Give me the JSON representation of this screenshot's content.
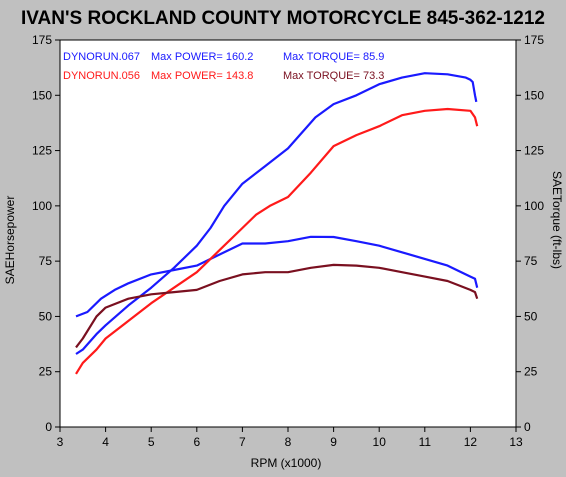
{
  "chart_data": {
    "type": "line",
    "title": "IVAN'S ROCKLAND COUNTY MOTORCYCLE 845-362-1212",
    "xlabel": "RPM (x1000)",
    "ylabel_left": "SAEHorsepower",
    "ylabel_right": "SAETorque (ft-lbs)",
    "xlim": [
      3,
      13
    ],
    "ylim": [
      0,
      175
    ],
    "x_ticks": [
      "3",
      "4",
      "5",
      "6",
      "7",
      "8",
      "9",
      "10",
      "11",
      "12",
      "13"
    ],
    "y_ticks_left": [
      "0",
      "25",
      "50",
      "75",
      "100",
      "125",
      "150",
      "175"
    ],
    "y_ticks_right": [
      "0",
      "25",
      "50",
      "75",
      "100",
      "125",
      "150",
      "175"
    ],
    "grid": false,
    "legend": [
      {
        "run": "DYNORUN.067",
        "power": "Max POWER= 160.2",
        "torque": "Max TORQUE= 85.9",
        "color": "#1a1aff"
      },
      {
        "run": "DYNORUN.056",
        "power": "Max POWER= 143.8",
        "torque": "Max TORQUE= 73.3",
        "color": "#ff1a1a"
      }
    ],
    "series": [
      {
        "color": "#1a1aff",
        "kind": "power",
        "points": [
          [
            3.35,
            33
          ],
          [
            3.5,
            35
          ],
          [
            3.8,
            42
          ],
          [
            4,
            46
          ],
          [
            4.5,
            55
          ],
          [
            5,
            63
          ],
          [
            5.5,
            72
          ],
          [
            6,
            82
          ],
          [
            6.3,
            90
          ],
          [
            6.6,
            100
          ],
          [
            7,
            110
          ],
          [
            7.5,
            118
          ],
          [
            8,
            126
          ],
          [
            8.3,
            133
          ],
          [
            8.6,
            140
          ],
          [
            9,
            146
          ],
          [
            9.5,
            150
          ],
          [
            10,
            155
          ],
          [
            10.5,
            158
          ],
          [
            11,
            160
          ],
          [
            11.5,
            159.5
          ],
          [
            11.9,
            158
          ],
          [
            12,
            157
          ],
          [
            12.05,
            156
          ],
          [
            12.1,
            150
          ],
          [
            12.13,
            147
          ]
        ]
      },
      {
        "color": "#1a1aff",
        "kind": "torque",
        "points": [
          [
            3.35,
            50
          ],
          [
            3.6,
            52
          ],
          [
            3.9,
            58
          ],
          [
            4.2,
            62
          ],
          [
            4.5,
            65
          ],
          [
            5,
            69
          ],
          [
            5.5,
            71
          ],
          [
            6,
            73
          ],
          [
            6.5,
            78
          ],
          [
            7,
            83
          ],
          [
            7.5,
            83
          ],
          [
            8,
            84
          ],
          [
            8.5,
            86
          ],
          [
            9,
            85.9
          ],
          [
            9.5,
            84
          ],
          [
            10,
            82
          ],
          [
            10.5,
            79
          ],
          [
            11,
            76
          ],
          [
            11.5,
            73
          ],
          [
            11.8,
            70
          ],
          [
            12,
            68
          ],
          [
            12.1,
            67
          ],
          [
            12.15,
            63
          ]
        ]
      },
      {
        "color": "#ff1a1a",
        "kind": "power",
        "points": [
          [
            3.35,
            24
          ],
          [
            3.5,
            29
          ],
          [
            3.8,
            35
          ],
          [
            4,
            40
          ],
          [
            4.5,
            48
          ],
          [
            5,
            56
          ],
          [
            5.5,
            63
          ],
          [
            6,
            70
          ],
          [
            6.5,
            80
          ],
          [
            7,
            90
          ],
          [
            7.3,
            96
          ],
          [
            7.6,
            100
          ],
          [
            8,
            104
          ],
          [
            8.5,
            115
          ],
          [
            9,
            127
          ],
          [
            9.5,
            132
          ],
          [
            10,
            136
          ],
          [
            10.5,
            141
          ],
          [
            11,
            143
          ],
          [
            11.5,
            143.8
          ],
          [
            12,
            143
          ],
          [
            12.1,
            140
          ],
          [
            12.15,
            136
          ]
        ]
      },
      {
        "color": "#7a1020",
        "kind": "torque",
        "points": [
          [
            3.35,
            36
          ],
          [
            3.5,
            40
          ],
          [
            3.8,
            50
          ],
          [
            4,
            54
          ],
          [
            4.5,
            58
          ],
          [
            5,
            60
          ],
          [
            5.5,
            61
          ],
          [
            6,
            62
          ],
          [
            6.5,
            66
          ],
          [
            7,
            69
          ],
          [
            7.5,
            70
          ],
          [
            8,
            70
          ],
          [
            8.5,
            72
          ],
          [
            9,
            73.3
          ],
          [
            9.5,
            73
          ],
          [
            10,
            72
          ],
          [
            10.5,
            70
          ],
          [
            11,
            68
          ],
          [
            11.5,
            66
          ],
          [
            12,
            62
          ],
          [
            12.1,
            61
          ],
          [
            12.15,
            58
          ]
        ]
      }
    ]
  }
}
